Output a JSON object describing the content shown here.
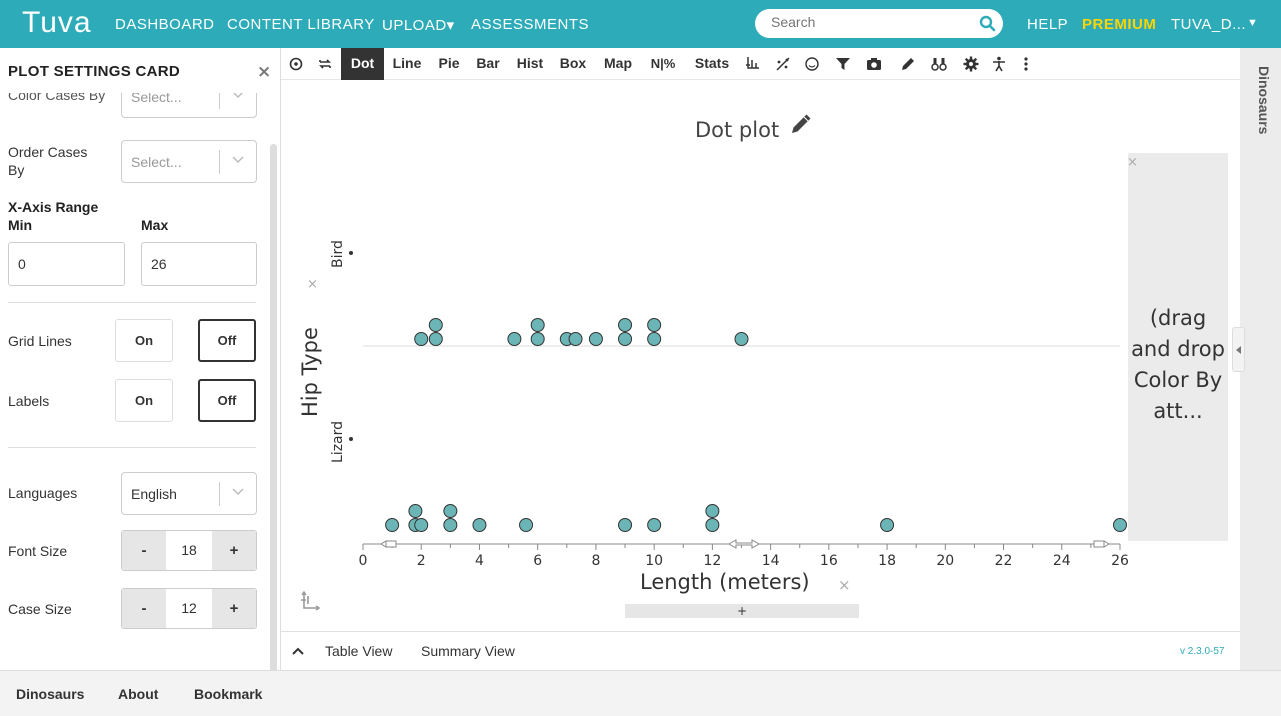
{
  "nav": {
    "logo": "Tuva",
    "links": [
      "DASHBOARD",
      "CONTENT LIBRARY",
      "UPLOAD▾",
      "ASSESSMENTS"
    ],
    "search_placeholder": "Search",
    "help": "HELP",
    "premium": "PREMIUM",
    "user": "TUVA_D...",
    "user_caret": "▼",
    "premium_color": "#ffd400",
    "brand_color": "#2dabb9"
  },
  "settings": {
    "title": "PLOT SETTINGS CARD",
    "close": "×",
    "color_cases_label": "Color Cases By",
    "color_cases_value": "Select...",
    "order_cases_label_1": "Order Cases",
    "order_cases_label_2": "By",
    "order_cases_value": "Select...",
    "x_axis_range_label": "X-Axis Range",
    "min_label": "Min",
    "max_label": "Max",
    "min_value": "0",
    "max_value": "26",
    "grid_lines_label": "Grid Lines",
    "grid_on": "On",
    "grid_off": "Off",
    "grid_selected": "Off",
    "labels_label": "Labels",
    "labels_on": "On",
    "labels_off": "Off",
    "labels_selected": "Off",
    "languages_label": "Languages",
    "language_value": "English",
    "font_size_label": "Font Size",
    "font_size_value": "18",
    "case_size_label": "Case Size",
    "case_size_value": "12",
    "minus": "-",
    "plus": "+"
  },
  "toolbar": {
    "items": [
      "Dot",
      "Line",
      "Pie",
      "Bar",
      "Hist",
      "Box",
      "Map",
      "N|%",
      "Stats"
    ],
    "active": "Dot",
    "icons": [
      "reset-icon",
      "swap-icon",
      "axis-icon",
      "fit-icon",
      "smiley-icon",
      "filter-icon",
      "camera-icon",
      "pencil-icon",
      "binoculars-icon",
      "gear-icon",
      "accessibility-icon",
      "more-icon"
    ]
  },
  "plot": {
    "title": "Dot plot",
    "drop_hint": "(drag and drop Color By att...",
    "y_axis_title": "Hip Type",
    "x_axis_title": "Length (meters)",
    "add_button": "+",
    "remove": "×"
  },
  "chart_data": {
    "type": "scatter",
    "title": "Dot plot",
    "xlabel": "Length (meters)",
    "ylabel": "Hip Type",
    "xlim": [
      0,
      26
    ],
    "x_ticks": [
      0,
      2,
      4,
      6,
      8,
      10,
      12,
      14,
      16,
      18,
      20,
      22,
      24,
      26
    ],
    "categories": [
      "Bird",
      "Lizard"
    ],
    "series": [
      {
        "name": "Bird",
        "values": [
          2,
          2.5,
          2.5,
          5.2,
          6,
          6,
          7,
          7.3,
          8,
          9,
          9,
          10,
          10,
          13
        ]
      },
      {
        "name": "Lizard",
        "values": [
          1,
          1.8,
          1.8,
          2,
          3,
          3,
          4,
          5.6,
          9,
          10,
          12,
          12,
          18,
          26
        ]
      }
    ],
    "point_color": "#6cb5b7",
    "grid": false
  },
  "views": {
    "table": "Table View",
    "summary": "Summary View",
    "version": "v 2.3.0-57"
  },
  "sidebar_right": {
    "dataset": "Dinosaurs"
  },
  "footer": {
    "items": [
      "Dinosaurs",
      "About",
      "Bookmark"
    ]
  }
}
